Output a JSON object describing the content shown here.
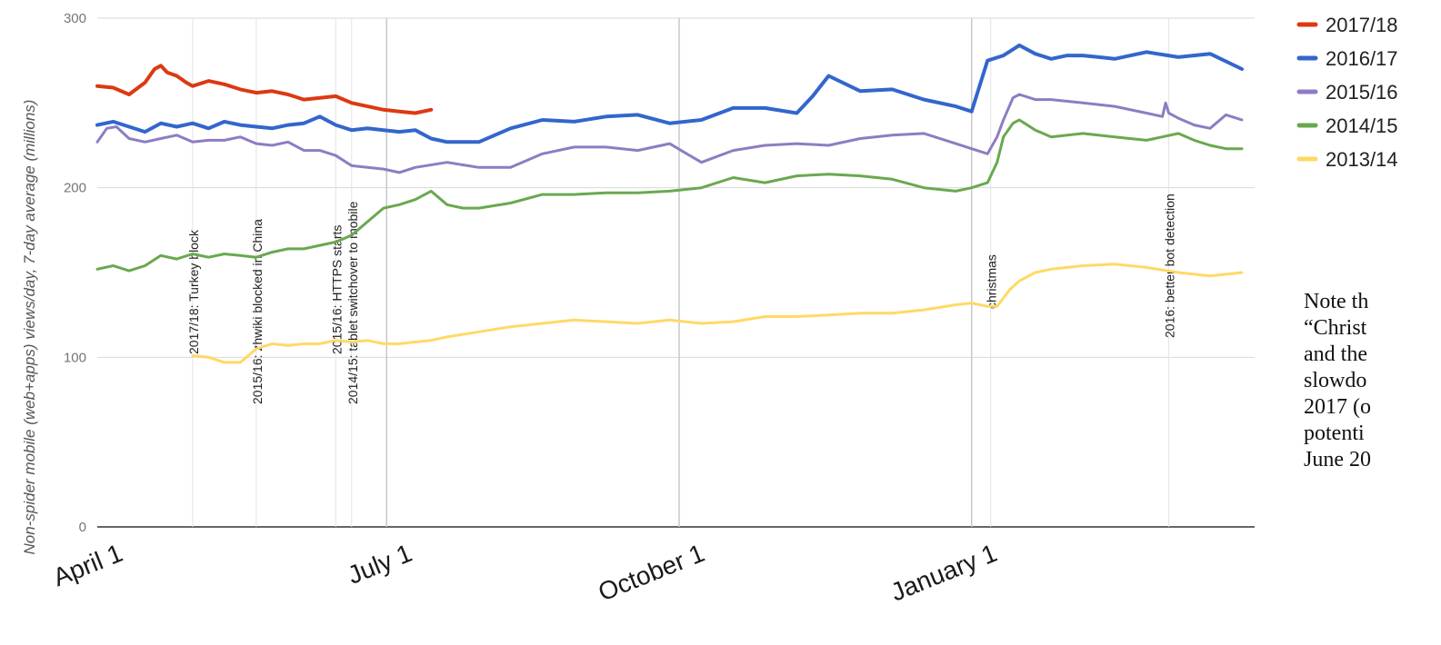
{
  "chart_data": {
    "type": "line",
    "title": "",
    "ylabel": "Non-spider mobile (web+apps) views/day, 7-day average (millions)",
    "xlabel": "",
    "ylim": [
      0,
      300
    ],
    "yticks": [
      0,
      100,
      200,
      300
    ],
    "xticks": [
      "April 1",
      "July 1",
      "October 1",
      "January 1"
    ],
    "x_unit": "day of year (day 0 = April 1)",
    "grid": true,
    "legend_position": "right",
    "series": [
      {
        "name": "2017/18",
        "color": "#dc3912",
        "width": 4,
        "x": [
          0,
          5,
          10,
          15,
          18,
          20,
          22,
          25,
          28,
          30,
          35,
          40,
          45,
          50,
          55,
          60,
          65,
          70,
          75,
          80,
          85,
          90,
          95,
          100,
          105
        ],
        "y": [
          260,
          259,
          255,
          262,
          270,
          272,
          268,
          266,
          262,
          260,
          263,
          261,
          258,
          256,
          257,
          255,
          252,
          253,
          254,
          250,
          248,
          246,
          245,
          244,
          246
        ]
      },
      {
        "name": "2016/17",
        "color": "#3366cc",
        "width": 4,
        "x": [
          0,
          5,
          10,
          15,
          20,
          25,
          30,
          35,
          40,
          45,
          50,
          55,
          60,
          65,
          70,
          75,
          80,
          85,
          90,
          95,
          100,
          105,
          110,
          115,
          120,
          130,
          140,
          150,
          160,
          170,
          180,
          190,
          200,
          210,
          220,
          225,
          230,
          240,
          250,
          260,
          270,
          275,
          280,
          285,
          290,
          295,
          300,
          305,
          310,
          315,
          320,
          330,
          340,
          350,
          360
        ],
        "y": [
          237,
          239,
          236,
          233,
          238,
          236,
          238,
          235,
          239,
          237,
          236,
          235,
          237,
          238,
          242,
          237,
          234,
          235,
          234,
          233,
          234,
          229,
          227,
          227,
          227,
          235,
          240,
          239,
          242,
          243,
          238,
          240,
          247,
          247,
          244,
          254,
          266,
          257,
          258,
          252,
          248,
          245,
          275,
          278,
          284,
          279,
          276,
          278,
          278,
          277,
          276,
          280,
          277,
          279,
          270
        ]
      },
      {
        "name": "2015/16",
        "color": "#8e7cc3",
        "width": 3,
        "x": [
          0,
          3,
          6,
          10,
          15,
          20,
          25,
          30,
          35,
          40,
          45,
          50,
          55,
          60,
          65,
          70,
          75,
          80,
          85,
          90,
          95,
          100,
          110,
          120,
          130,
          140,
          150,
          160,
          170,
          180,
          190,
          200,
          210,
          220,
          230,
          240,
          250,
          260,
          270,
          280,
          283,
          285,
          288,
          290,
          295,
          300,
          310,
          320,
          330,
          335,
          336,
          337,
          340,
          345,
          350,
          355,
          360
        ],
        "y": [
          227,
          235,
          236,
          229,
          227,
          229,
          231,
          227,
          228,
          228,
          230,
          226,
          225,
          227,
          222,
          222,
          219,
          213,
          212,
          211,
          209,
          212,
          215,
          212,
          212,
          220,
          224,
          224,
          222,
          226,
          215,
          222,
          225,
          226,
          225,
          229,
          231,
          232,
          226,
          220,
          230,
          240,
          253,
          255,
          252,
          252,
          250,
          248,
          244,
          242,
          250,
          244,
          241,
          237,
          235,
          243,
          240
        ]
      },
      {
        "name": "2014/15",
        "color": "#6aa84f",
        "width": 3,
        "x": [
          0,
          5,
          10,
          15,
          20,
          25,
          30,
          35,
          40,
          45,
          50,
          55,
          60,
          65,
          70,
          75,
          80,
          85,
          90,
          95,
          100,
          105,
          110,
          115,
          120,
          130,
          140,
          150,
          160,
          170,
          180,
          190,
          200,
          210,
          220,
          230,
          240,
          250,
          260,
          270,
          275,
          280,
          283,
          285,
          288,
          290,
          295,
          300,
          310,
          320,
          330,
          340,
          345,
          350,
          355,
          360
        ],
        "y": [
          152,
          154,
          151,
          154,
          160,
          158,
          161,
          159,
          161,
          160,
          159,
          162,
          164,
          164,
          166,
          168,
          172,
          180,
          188,
          190,
          193,
          198,
          190,
          188,
          188,
          191,
          196,
          196,
          197,
          197,
          198,
          200,
          206,
          203,
          207,
          208,
          207,
          205,
          200,
          198,
          200,
          203,
          215,
          230,
          238,
          240,
          234,
          230,
          232,
          230,
          228,
          232,
          228,
          225,
          223,
          223
        ]
      },
      {
        "name": "2013/14",
        "color": "#ffd966",
        "width": 3,
        "x": [
          30,
          35,
          40,
          45,
          50,
          55,
          60,
          65,
          70,
          75,
          80,
          85,
          90,
          95,
          100,
          105,
          110,
          120,
          130,
          140,
          150,
          160,
          170,
          180,
          190,
          200,
          210,
          220,
          230,
          240,
          250,
          260,
          270,
          275,
          280,
          283,
          285,
          287,
          290,
          295,
          300,
          310,
          320,
          330,
          340,
          350,
          360
        ],
        "y": [
          101,
          100,
          97,
          97,
          105,
          108,
          107,
          108,
          108,
          110,
          109,
          110,
          108,
          108,
          109,
          110,
          112,
          115,
          118,
          120,
          122,
          121,
          120,
          122,
          120,
          121,
          124,
          124,
          125,
          126,
          126,
          128,
          131,
          132,
          130,
          130,
          135,
          140,
          145,
          150,
          152,
          154,
          155,
          153,
          150,
          148,
          150
        ]
      }
    ],
    "annotations": [
      {
        "x": 30,
        "text": "2017/18: Turkey block"
      },
      {
        "x": 50,
        "text": "2015/16: zhwiki blocked in China"
      },
      {
        "x": 75,
        "text": "2015/16: HTTPS starts"
      },
      {
        "x": 80,
        "text": "2014/15: tablet switchover to mobile"
      },
      {
        "x": 281,
        "text": "christmas"
      },
      {
        "x": 337,
        "text": "2016: better bot detection"
      }
    ]
  },
  "note": {
    "lines": [
      "Note th",
      "“Christ",
      "and the",
      "slowdo",
      "2017 (o",
      "potenti",
      "June 20"
    ]
  }
}
